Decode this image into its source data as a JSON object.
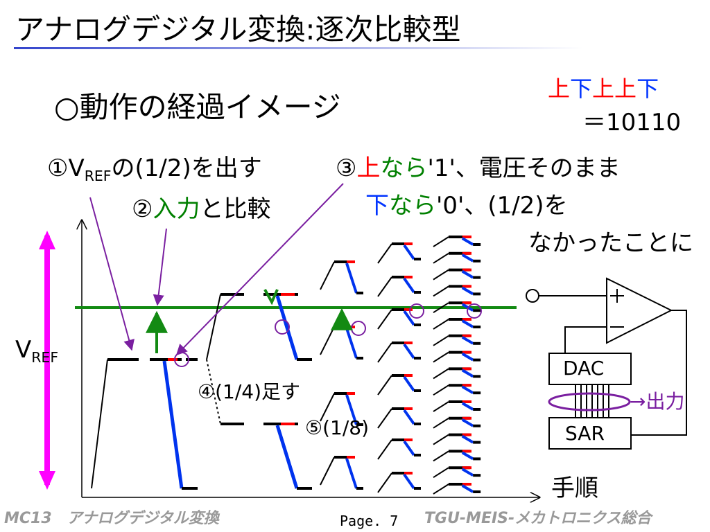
{
  "header": {
    "title": "アナログデジタル変換:逐次比較型"
  },
  "subtitle": "○動作の経過イメージ",
  "result": {
    "bits": [
      "上",
      "下",
      "上",
      "上",
      "下"
    ],
    "code": "＝10110"
  },
  "notes": {
    "step1": {
      "prefix": "①V",
      "subscript": "REF",
      "suffix": "の(1/2)を出す"
    },
    "step2": {
      "number": "②",
      "highlight": "入力",
      "suffix": "と比較"
    },
    "step3": {
      "number": "③",
      "up": "上",
      "if": "なら",
      "up_action": "'1'、電圧そのまま",
      "down": "下",
      "if_down": "なら",
      "down_action": "'0'、(1/2)を",
      "down_action_2": "なかったことに"
    },
    "step4": "④(1/4)足す",
    "step5": "⑤(1/8)"
  },
  "axis": {
    "y_label": "V",
    "y_subscript": "REF",
    "x_label": "手順"
  },
  "circuit": {
    "dac": "DAC",
    "sar": "SAR",
    "output": "→出力"
  },
  "footer": {
    "left": "MC13　アナログデジタル変換",
    "page": "Page. 7",
    "right": "TGU-MEIS-メカトロニクス総合"
  }
}
